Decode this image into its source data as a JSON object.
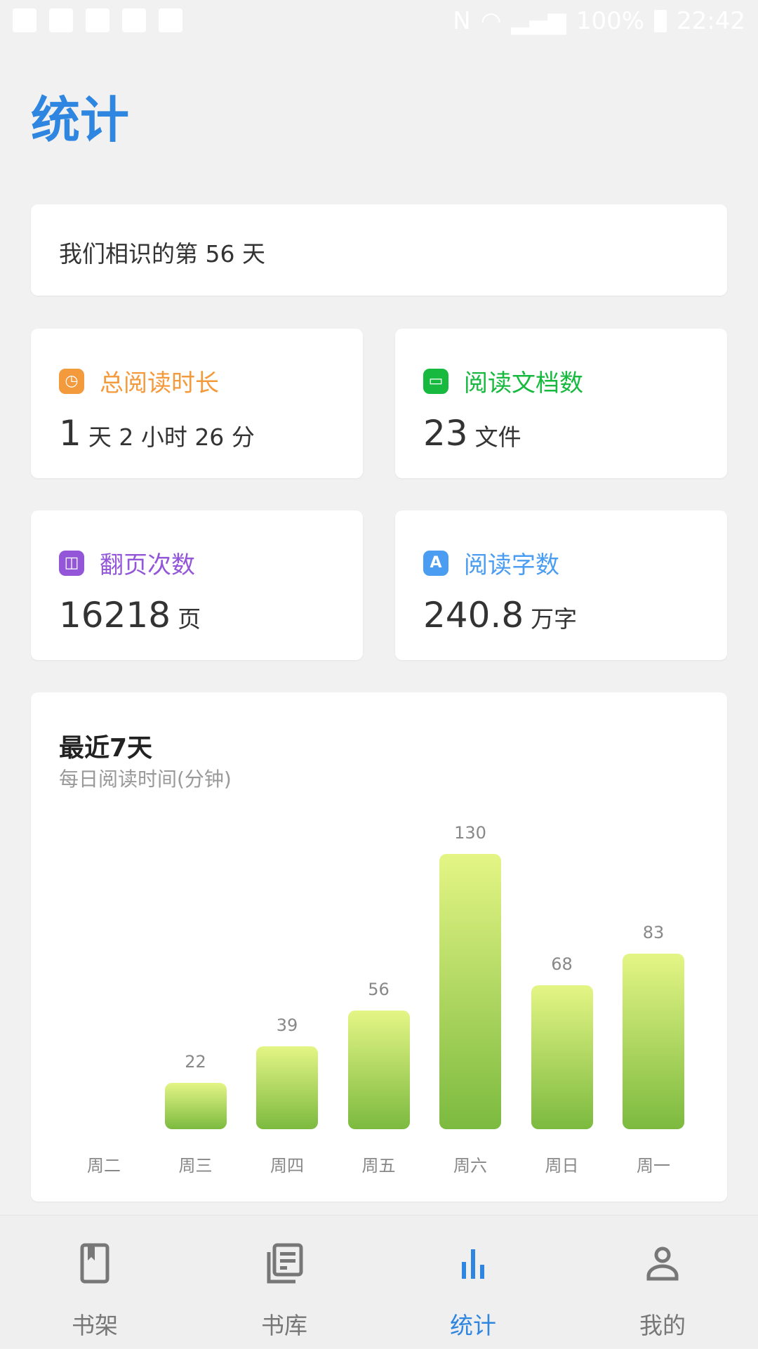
{
  "status_bar": {
    "battery": "100%",
    "time": "22:42"
  },
  "page_title": "统计",
  "days_card": {
    "text": "我们相识的第 56 天"
  },
  "stats": [
    {
      "label": "总阅读时长",
      "icon": "clock-icon",
      "color": "#f39a3c",
      "value_parts": [
        "1",
        "天",
        "2",
        "小时",
        "26",
        "分"
      ]
    },
    {
      "label": "阅读文档数",
      "icon": "folder-icon",
      "color": "#18b93f",
      "value": "23",
      "unit": "文件"
    },
    {
      "label": "翻页次数",
      "icon": "book-icon",
      "color": "#9356d8",
      "value": "16218",
      "unit": "页"
    },
    {
      "label": "阅读字数",
      "icon": "letter-a-icon",
      "color": "#4a9df0",
      "value": "240.8",
      "unit": "万字"
    }
  ],
  "chart_data": {
    "type": "bar",
    "title": "最近7天",
    "subtitle": "每日阅读时间(分钟)",
    "categories": [
      "周二",
      "周三",
      "周四",
      "周五",
      "周六",
      "周日",
      "周一"
    ],
    "values": [
      0,
      22,
      39,
      56,
      130,
      68,
      83
    ],
    "value_labels": [
      "",
      "22",
      "39",
      "56",
      "130",
      "68",
      "83"
    ],
    "bar_gradient": [
      "#e4f585",
      "#7cba3f"
    ]
  },
  "nav": [
    {
      "label": "书架",
      "icon": "bookshelf-icon"
    },
    {
      "label": "书库",
      "icon": "library-icon"
    },
    {
      "label": "统计",
      "icon": "bar-chart-icon",
      "active": true
    },
    {
      "label": "我的",
      "icon": "person-icon"
    }
  ],
  "accent": "#2f86e0"
}
